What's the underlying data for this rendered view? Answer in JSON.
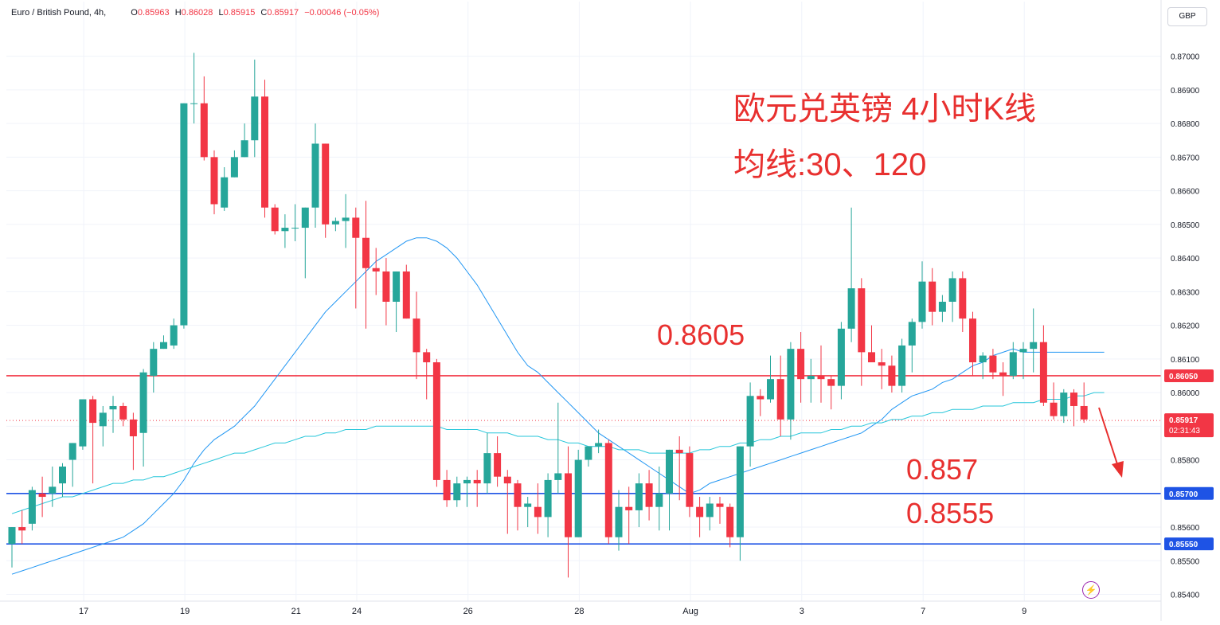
{
  "header": {
    "symbol": "Euro / British Pound, 4h,",
    "o_label": "O",
    "o": "0.85963",
    "h_label": "H",
    "h": "0.86028",
    "l_label": "L",
    "l": "0.85915",
    "c_label": "C",
    "c": "0.85917",
    "change": "−0.00046 (−0.05%)"
  },
  "currency": "GBP",
  "annotations": {
    "title_line1": "欧元兑英镑 4小时K线",
    "title_line2": "均线:30、120",
    "resistance_label": "0.8605",
    "support1_label": "0.857",
    "support2_label": "0.8555"
  },
  "colors": {
    "up": "#26a69a",
    "down": "#f23645",
    "ma30": "#2196f3",
    "ma120": "#26c6da",
    "resistance": "#f23645",
    "support": "#1e53e5",
    "annotation_text": "#e8302f"
  },
  "chart_data": {
    "type": "candlestick",
    "title": "欧元兑英镑 4小时K线",
    "ylim": [
      0.8538,
      0.8716
    ],
    "y_ticks": [
      "0.87000",
      "0.86900",
      "0.86800",
      "0.86700",
      "0.86600",
      "0.86500",
      "0.86400",
      "0.86300",
      "0.86200",
      "0.86100",
      "0.86000",
      "0.85900",
      "0.85800",
      "0.85600",
      "0.85500",
      "0.85400"
    ],
    "x_ticks": [
      {
        "label": "17",
        "index": 3
      },
      {
        "label": "19",
        "index": 13
      },
      {
        "label": "21",
        "index": 24
      },
      {
        "label": "24",
        "index": 30
      },
      {
        "label": "26",
        "index": 41
      },
      {
        "label": "28",
        "index": 52
      },
      {
        "label": "Aug",
        "index": 63
      },
      {
        "label": "3",
        "index": 74
      },
      {
        "label": "7",
        "index": 86
      },
      {
        "label": "9",
        "index": 96
      }
    ],
    "price_labels": [
      {
        "value": "0.86050",
        "price": 0.8605,
        "color": "#f23645"
      },
      {
        "value": "0.85917",
        "price": 0.85917,
        "color": "#f23645",
        "sub": "02:31:43"
      },
      {
        "value": "0.85700",
        "price": 0.857,
        "color": "#1e53e5"
      },
      {
        "value": "0.85550",
        "price": 0.8555,
        "color": "#1e53e5"
      }
    ],
    "horizontal_lines": [
      {
        "name": "0.8605",
        "price": 0.8605,
        "color": "#f23645"
      },
      {
        "name": "0.857",
        "price": 0.857,
        "color": "#1e53e5"
      },
      {
        "name": "0.8555",
        "price": 0.8555,
        "color": "#1e53e5"
      }
    ],
    "candles": [
      [
        0.8555,
        0.856,
        0.8548,
        0.856
      ],
      [
        0.856,
        0.8565,
        0.8555,
        0.8559
      ],
      [
        0.8561,
        0.8572,
        0.8559,
        0.8571
      ],
      [
        0.857,
        0.8575,
        0.8563,
        0.8569
      ],
      [
        0.857,
        0.8578,
        0.8566,
        0.8572
      ],
      [
        0.8573,
        0.8579,
        0.8569,
        0.8578
      ],
      [
        0.858,
        0.8585,
        0.8572,
        0.8585
      ],
      [
        0.8584,
        0.8598,
        0.8583,
        0.8598
      ],
      [
        0.8598,
        0.8599,
        0.8573,
        0.8591
      ],
      [
        0.859,
        0.8596,
        0.8584,
        0.8594
      ],
      [
        0.8595,
        0.8599,
        0.8588,
        0.8596
      ],
      [
        0.8596,
        0.8597,
        0.859,
        0.8592
      ],
      [
        0.8592,
        0.8594,
        0.8577,
        0.8587
      ],
      [
        0.8588,
        0.8607,
        0.8578,
        0.8606
      ],
      [
        0.8605,
        0.8615,
        0.86,
        0.8613
      ],
      [
        0.8613,
        0.8617,
        0.8613,
        0.8615
      ],
      [
        0.8614,
        0.8622,
        0.8613,
        0.862
      ],
      [
        0.862,
        0.8686,
        0.8619,
        0.8686
      ],
      [
        0.8686,
        0.8701,
        0.868,
        0.8686
      ],
      [
        0.8686,
        0.8694,
        0.8669,
        0.867
      ],
      [
        0.867,
        0.8672,
        0.8653,
        0.8656
      ],
      [
        0.8655,
        0.8667,
        0.8654,
        0.8664
      ],
      [
        0.8664,
        0.8672,
        0.8664,
        0.867
      ],
      [
        0.867,
        0.868,
        0.867,
        0.8675
      ],
      [
        0.8675,
        0.8699,
        0.867,
        0.8688
      ],
      [
        0.8688,
        0.8693,
        0.8652,
        0.8655
      ],
      [
        0.8655,
        0.8656,
        0.8647,
        0.8648
      ],
      [
        0.8648,
        0.8653,
        0.8643,
        0.8649
      ],
      [
        0.8649,
        0.8656,
        0.8645,
        0.8649
      ],
      [
        0.8649,
        0.8655,
        0.8634,
        0.8655
      ],
      [
        0.8655,
        0.868,
        0.8649,
        0.8674
      ],
      [
        0.8674,
        0.8674,
        0.8646,
        0.865
      ],
      [
        0.865,
        0.8652,
        0.8648,
        0.8651
      ],
      [
        0.8651,
        0.8659,
        0.8643,
        0.8652
      ],
      [
        0.8652,
        0.8655,
        0.8625,
        0.8646
      ],
      [
        0.8646,
        0.8657,
        0.8619,
        0.8637
      ],
      [
        0.8637,
        0.8643,
        0.8629,
        0.8636
      ],
      [
        0.8636,
        0.864,
        0.862,
        0.8627
      ],
      [
        0.8627,
        0.8636,
        0.8618,
        0.8636
      ],
      [
        0.8636,
        0.8638,
        0.8622,
        0.8622
      ],
      [
        0.8622,
        0.863,
        0.8604,
        0.8612
      ],
      [
        0.8612,
        0.8613,
        0.8598,
        0.8609
      ],
      [
        0.8609,
        0.861,
        0.8572,
        0.8574
      ],
      [
        0.8574,
        0.8577,
        0.8566,
        0.8568
      ],
      [
        0.8568,
        0.8575,
        0.8566,
        0.8573
      ],
      [
        0.8573,
        0.8575,
        0.8566,
        0.8574
      ],
      [
        0.8574,
        0.8577,
        0.8566,
        0.8573
      ],
      [
        0.8573,
        0.8588,
        0.857,
        0.8582
      ],
      [
        0.8582,
        0.8587,
        0.8572,
        0.8575
      ],
      [
        0.8575,
        0.8577,
        0.8558,
        0.8573
      ],
      [
        0.8573,
        0.8574,
        0.8559,
        0.8566
      ],
      [
        0.8566,
        0.8569,
        0.856,
        0.8567
      ],
      [
        0.8566,
        0.8573,
        0.8558,
        0.8563
      ],
      [
        0.8563,
        0.8576,
        0.8557,
        0.8574
      ],
      [
        0.8574,
        0.8597,
        0.857,
        0.8576
      ],
      [
        0.8576,
        0.8584,
        0.8545,
        0.8557
      ],
      [
        0.8557,
        0.8583,
        0.8557,
        0.858
      ],
      [
        0.858,
        0.8584,
        0.8578,
        0.8584
      ],
      [
        0.8584,
        0.8589,
        0.8582,
        0.8585
      ],
      [
        0.8585,
        0.8586,
        0.8555,
        0.8557
      ],
      [
        0.8557,
        0.8571,
        0.8553,
        0.8566
      ],
      [
        0.8566,
        0.8572,
        0.8555,
        0.8565
      ],
      [
        0.8565,
        0.8576,
        0.856,
        0.8573
      ],
      [
        0.8573,
        0.8577,
        0.8562,
        0.8566
      ],
      [
        0.8566,
        0.8578,
        0.8559,
        0.857
      ],
      [
        0.857,
        0.8583,
        0.8559,
        0.8583
      ],
      [
        0.8583,
        0.8587,
        0.8568,
        0.8582
      ],
      [
        0.8582,
        0.8584,
        0.8563,
        0.8566
      ],
      [
        0.8566,
        0.8569,
        0.8557,
        0.8563
      ],
      [
        0.8563,
        0.8569,
        0.8559,
        0.8567
      ],
      [
        0.8567,
        0.8569,
        0.8561,
        0.8566
      ],
      [
        0.8566,
        0.8567,
        0.8554,
        0.8557
      ],
      [
        0.8557,
        0.8584,
        0.855,
        0.8584
      ],
      [
        0.8584,
        0.8603,
        0.8578,
        0.8599
      ],
      [
        0.8599,
        0.8601,
        0.8593,
        0.8598
      ],
      [
        0.8598,
        0.8611,
        0.8597,
        0.8604
      ],
      [
        0.8604,
        0.8611,
        0.8587,
        0.8592
      ],
      [
        0.8592,
        0.8615,
        0.8586,
        0.8613
      ],
      [
        0.8613,
        0.8618,
        0.8597,
        0.8604
      ],
      [
        0.8604,
        0.861,
        0.8597,
        0.8605
      ],
      [
        0.8605,
        0.8614,
        0.8597,
        0.8604
      ],
      [
        0.8604,
        0.8605,
        0.8595,
        0.8602
      ],
      [
        0.8602,
        0.8621,
        0.8598,
        0.8619
      ],
      [
        0.8619,
        0.8655,
        0.8615,
        0.8631
      ],
      [
        0.8631,
        0.8634,
        0.8602,
        0.8612
      ],
      [
        0.8612,
        0.862,
        0.8609,
        0.8609
      ],
      [
        0.8609,
        0.8613,
        0.8601,
        0.8608
      ],
      [
        0.8608,
        0.8611,
        0.86,
        0.8602
      ],
      [
        0.8602,
        0.8616,
        0.86,
        0.8614
      ],
      [
        0.8614,
        0.8622,
        0.8606,
        0.8621
      ],
      [
        0.8621,
        0.8639,
        0.8619,
        0.8633
      ],
      [
        0.8633,
        0.8637,
        0.862,
        0.8624
      ],
      [
        0.8624,
        0.8629,
        0.8621,
        0.8627
      ],
      [
        0.8627,
        0.8636,
        0.8621,
        0.8634
      ],
      [
        0.8634,
        0.8636,
        0.8618,
        0.8622
      ],
      [
        0.8622,
        0.8624,
        0.8605,
        0.8609
      ],
      [
        0.8609,
        0.8612,
        0.8604,
        0.8611
      ],
      [
        0.8611,
        0.8613,
        0.8604,
        0.8606
      ],
      [
        0.8606,
        0.8609,
        0.8599,
        0.8605
      ],
      [
        0.8605,
        0.8615,
        0.8604,
        0.8612
      ],
      [
        0.8612,
        0.8615,
        0.8604,
        0.8613
      ],
      [
        0.8613,
        0.8625,
        0.8606,
        0.8615
      ],
      [
        0.8615,
        0.862,
        0.8596,
        0.8597
      ],
      [
        0.8597,
        0.8603,
        0.8592,
        0.8593
      ],
      [
        0.8593,
        0.8601,
        0.8591,
        0.86
      ],
      [
        0.86,
        0.8601,
        0.859,
        0.8596
      ],
      [
        0.8596,
        0.8603,
        0.8591,
        0.8592
      ]
    ],
    "series": [
      {
        "name": "MA30",
        "values": [
          0.8546,
          0.8547,
          0.8548,
          0.8549,
          0.855,
          0.8551,
          0.8552,
          0.8553,
          0.8554,
          0.8555,
          0.8556,
          0.8557,
          0.8559,
          0.8561,
          0.8564,
          0.8567,
          0.857,
          0.8574,
          0.8579,
          0.8583,
          0.8586,
          0.8588,
          0.859,
          0.8593,
          0.8596,
          0.86,
          0.8604,
          0.8608,
          0.8612,
          0.8616,
          0.862,
          0.8624,
          0.8627,
          0.863,
          0.8633,
          0.8636,
          0.8639,
          0.8641,
          0.8643,
          0.8645,
          0.8646,
          0.8646,
          0.8645,
          0.8643,
          0.864,
          0.8636,
          0.8632,
          0.8627,
          0.8622,
          0.8617,
          0.8612,
          0.8608,
          0.8606,
          0.8603,
          0.86,
          0.8597,
          0.8594,
          0.8591,
          0.8588,
          0.8586,
          0.8584,
          0.8582,
          0.858,
          0.8578,
          0.8576,
          0.8574,
          0.8572,
          0.857,
          0.8571,
          0.8573,
          0.8574,
          0.8575,
          0.8576,
          0.8577,
          0.8578,
          0.8579,
          0.858,
          0.8581,
          0.8582,
          0.8583,
          0.8584,
          0.8585,
          0.8586,
          0.8587,
          0.8588,
          0.859,
          0.8592,
          0.8595,
          0.8597,
          0.8599,
          0.86,
          0.8601,
          0.8603,
          0.8604,
          0.8606,
          0.8608,
          0.8609,
          0.8611,
          0.8612,
          0.8613,
          0.8612,
          0.8612,
          0.8612,
          0.8612,
          0.8612,
          0.8612,
          0.8612,
          0.8612,
          0.8612
        ]
      },
      {
        "name": "MA120",
        "values": [
          0.8564,
          0.8565,
          0.8566,
          0.8567,
          0.8568,
          0.8569,
          0.8569,
          0.857,
          0.8571,
          0.8572,
          0.8573,
          0.8573,
          0.8574,
          0.8574,
          0.8575,
          0.8575,
          0.8576,
          0.8577,
          0.8578,
          0.8579,
          0.858,
          0.8581,
          0.8582,
          0.8582,
          0.8583,
          0.8584,
          0.8585,
          0.8585,
          0.8586,
          0.8587,
          0.8587,
          0.8588,
          0.8588,
          0.8589,
          0.8589,
          0.8589,
          0.859,
          0.859,
          0.859,
          0.859,
          0.859,
          0.859,
          0.859,
          0.8589,
          0.8589,
          0.8589,
          0.8589,
          0.8588,
          0.8588,
          0.8588,
          0.8587,
          0.8587,
          0.8587,
          0.8586,
          0.8586,
          0.8585,
          0.8585,
          0.8584,
          0.8584,
          0.8584,
          0.8583,
          0.8583,
          0.8583,
          0.8582,
          0.8582,
          0.8582,
          0.8582,
          0.8582,
          0.8583,
          0.8583,
          0.8584,
          0.8584,
          0.8585,
          0.8585,
          0.8586,
          0.8586,
          0.8587,
          0.8587,
          0.8588,
          0.8588,
          0.8588,
          0.8589,
          0.8589,
          0.859,
          0.859,
          0.8591,
          0.8591,
          0.8592,
          0.8592,
          0.8593,
          0.8593,
          0.8594,
          0.8594,
          0.8595,
          0.8595,
          0.8595,
          0.8596,
          0.8596,
          0.8596,
          0.8597,
          0.8597,
          0.8597,
          0.8598,
          0.8598,
          0.8598,
          0.8599,
          0.8599,
          0.86,
          0.86
        ]
      }
    ]
  }
}
